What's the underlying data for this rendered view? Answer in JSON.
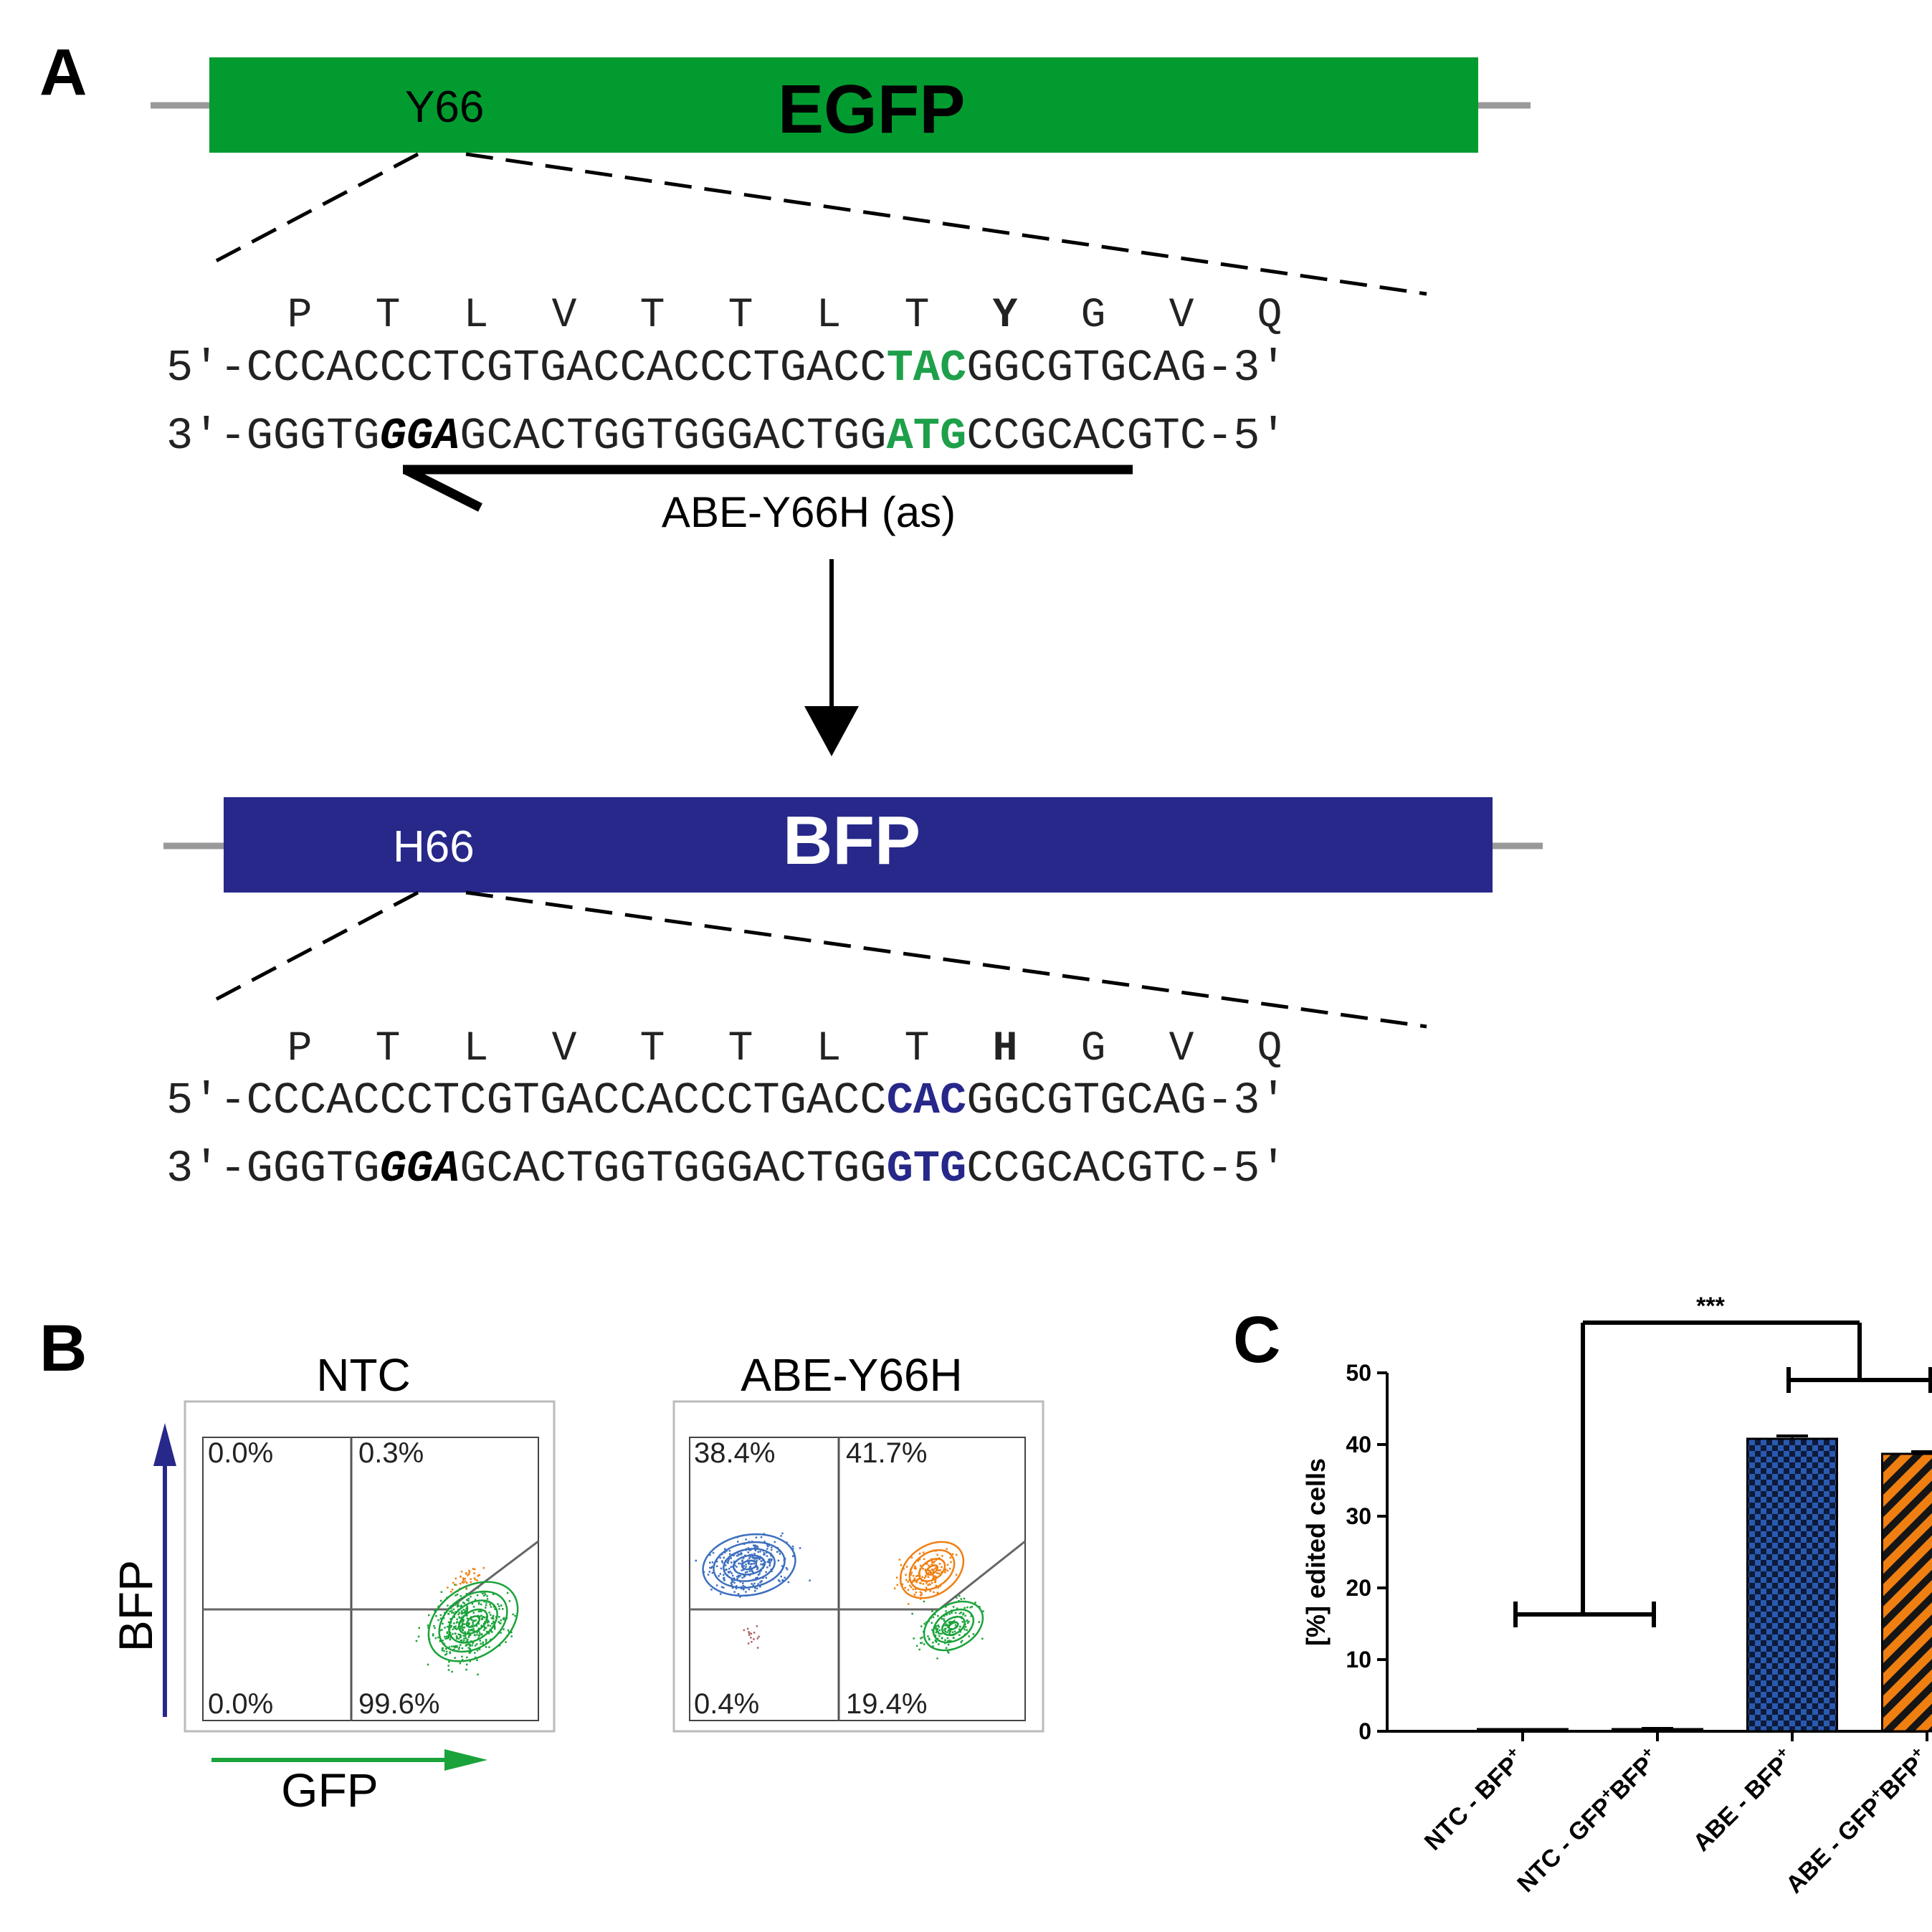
{
  "panels": {
    "a": "A",
    "b": "B",
    "c": "C"
  },
  "colors": {
    "egfp": "#029b30",
    "bfp": "#27288a",
    "green_text": "#1ea04a",
    "blue_text": "#27288a",
    "orange": "#f07f12",
    "flow_green": "#1aa33a",
    "flow_blue": "#3d6fbf"
  },
  "egfp_construct": {
    "gene": "EGFP",
    "residue": "Y66",
    "amino_acids": [
      "P",
      "T",
      "L",
      "V",
      "T",
      "T",
      "L",
      "T",
      "Y",
      "G",
      "V",
      "Q"
    ],
    "top_strand": {
      "prefix": "5'-",
      "before": "CCCACCCTCGTGACCACCCTGACC",
      "highlight": "TAC",
      "after": "GGCGTGCAG",
      "suffix": "-3'"
    },
    "bottom_strand": {
      "prefix": "3'-",
      "before": "GGGTG",
      "pam": "GGA",
      "middle": "GCACTGGTGGGACTGG",
      "highlight": "ATG",
      "after": "CCGCACGTC",
      "suffix": "-5'"
    },
    "guide_label": "ABE-Y66H (as)"
  },
  "bfp_construct": {
    "gene": "BFP",
    "residue": "H66",
    "amino_acids": [
      "P",
      "T",
      "L",
      "V",
      "T",
      "T",
      "L",
      "T",
      "H",
      "G",
      "V",
      "Q"
    ],
    "top_strand": {
      "prefix": "5'-",
      "before": "CCCACCCTCGTGACCACCCTGACC",
      "highlight": "CAC",
      "after": "GGCGTGCAG",
      "suffix": "-3'"
    },
    "bottom_strand": {
      "prefix": "3'-",
      "before": "GGGTG",
      "pam": "GGA",
      "middle": "GCACTGGTGGGACTGG",
      "highlight": "GTG",
      "after": "CCGCACGTC",
      "suffix": "-5'"
    }
  },
  "flow": {
    "x_axis": "GFP",
    "y_axis": "BFP",
    "plots": [
      {
        "title": "NTC",
        "quadrants": {
          "upper_left": "0.0%",
          "upper_right": "0.3%",
          "lower_left": "0.0%",
          "lower_right": "99.6%"
        }
      },
      {
        "title": "ABE-Y66H",
        "quadrants": {
          "upper_left": "38.4%",
          "upper_right": "41.7%",
          "lower_left": "0.4%",
          "lower_right": "19.4%"
        }
      }
    ]
  },
  "chart_data": {
    "type": "bar",
    "title": "",
    "xlabel": "",
    "ylabel": "[%] edited cells",
    "ylim": [
      0,
      50
    ],
    "yticks": [
      "0",
      "10",
      "20",
      "30",
      "40",
      "50"
    ],
    "categories": [
      "NTC - BFP+",
      "NTC - GFP+BFP+",
      "ABE - BFP+",
      "ABE - GFP+BFP+"
    ],
    "values": [
      0.0,
      0.3,
      40.8,
      38.7
    ],
    "errors": [
      0.0,
      0.1,
      0.4,
      0.3
    ],
    "fills": [
      "none",
      "none",
      "blue-checker",
      "orange-diagonal"
    ],
    "significance": "***"
  }
}
